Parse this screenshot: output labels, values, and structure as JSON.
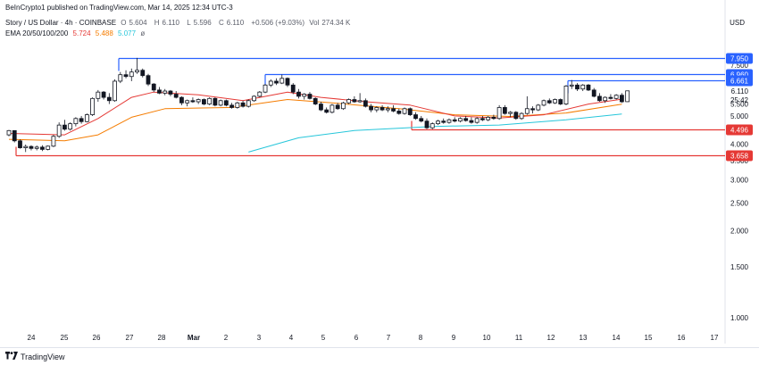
{
  "header": {
    "publish_line": "BeInCrypto1 published on TradingView.com, Mar 14, 2025 12:34 UTC-3",
    "symbol": "Story / US Dollar · 4h · COINBASE",
    "ohlc": {
      "open_label": "O",
      "open": "5.604",
      "high_label": "H",
      "high": "6.110",
      "low_label": "L",
      "low": "5.596",
      "close_label": "C",
      "close": "6.110",
      "change": "+0.506 (+9.03%)",
      "volume_label": "Vol",
      "volume": "274.34 K"
    },
    "ema_label": "EMA 20/50/100/200",
    "ema_values": [
      "5.724",
      "5.488",
      "5.077"
    ],
    "ema_hidden_icon": "ø",
    "currency": "USD"
  },
  "colors": {
    "ema20": "#e53935",
    "ema50": "#f57c00",
    "ema100": "#26c6da",
    "resistance": "#2962ff",
    "support": "#e53935",
    "price": "#131722"
  },
  "axis": {
    "price_ticks": [
      "7.500",
      "7.000",
      "6.500",
      "6.110",
      "5.500",
      "5.000",
      "4.000",
      "3.500",
      "3.000",
      "2.500",
      "2.000",
      "1.500",
      "1.000"
    ],
    "date_ticks": [
      "24",
      "25",
      "26",
      "27",
      "28",
      "Mar",
      "2",
      "3",
      "4",
      "5",
      "6",
      "7",
      "8",
      "9",
      "10",
      "11",
      "12",
      "13",
      "14",
      "15",
      "16",
      "17"
    ],
    "countdown": "25:42"
  },
  "levels": {
    "resistance": [
      "7.950",
      "6.960",
      "6.661"
    ],
    "support": [
      "4.496",
      "3.658"
    ]
  },
  "footer": {
    "brand": "TradingView",
    "logo_icon": "tradingview-logo-icon"
  },
  "chart_data": {
    "type": "candlestick",
    "interval": "4h",
    "note_values": "OHLC estimated from chart",
    "candles": [
      [
        4.3,
        4.47,
        4.25,
        4.45
      ],
      [
        4.45,
        4.46,
        4.05,
        4.1
      ],
      [
        4.1,
        4.15,
        3.85,
        3.88
      ],
      [
        3.88,
        3.98,
        3.75,
        3.92
      ],
      [
        3.92,
        3.96,
        3.8,
        3.86
      ],
      [
        3.86,
        3.95,
        3.8,
        3.9
      ],
      [
        3.9,
        3.96,
        3.78,
        3.83
      ],
      [
        3.83,
        3.95,
        3.8,
        3.93
      ],
      [
        3.93,
        4.3,
        3.9,
        4.25
      ],
      [
        4.25,
        4.75,
        4.2,
        4.65
      ],
      [
        4.65,
        4.85,
        4.45,
        4.5
      ],
      [
        4.5,
        4.75,
        4.45,
        4.7
      ],
      [
        4.7,
        4.95,
        4.6,
        4.9
      ],
      [
        4.9,
        5.0,
        4.7,
        4.78
      ],
      [
        4.78,
        5.1,
        4.75,
        5.05
      ],
      [
        5.05,
        5.8,
        5.0,
        5.75
      ],
      [
        5.75,
        6.15,
        5.6,
        6.05
      ],
      [
        6.05,
        6.1,
        5.7,
        5.8
      ],
      [
        5.8,
        6.0,
        5.5,
        5.65
      ],
      [
        5.65,
        6.7,
        5.6,
        6.6
      ],
      [
        6.6,
        7.1,
        6.5,
        6.95
      ],
      [
        6.95,
        7.2,
        6.75,
        6.85
      ],
      [
        6.85,
        7.3,
        6.6,
        7.1
      ],
      [
        7.1,
        7.95,
        7.0,
        7.2
      ],
      [
        7.2,
        7.3,
        6.8,
        6.9
      ],
      [
        6.9,
        7.0,
        6.35,
        6.45
      ],
      [
        6.45,
        6.5,
        6.05,
        6.15
      ],
      [
        6.15,
        6.3,
        5.95,
        6.0
      ],
      [
        6.0,
        6.2,
        5.9,
        6.1
      ],
      [
        6.1,
        6.15,
        5.85,
        5.95
      ],
      [
        5.95,
        6.1,
        5.75,
        5.8
      ],
      [
        5.8,
        5.85,
        5.45,
        5.55
      ],
      [
        5.55,
        5.7,
        5.4,
        5.65
      ],
      [
        5.65,
        5.8,
        5.55,
        5.6
      ],
      [
        5.6,
        5.75,
        5.5,
        5.7
      ],
      [
        5.7,
        5.75,
        5.45,
        5.5
      ],
      [
        5.5,
        5.8,
        5.45,
        5.75
      ],
      [
        5.75,
        5.8,
        5.4,
        5.45
      ],
      [
        5.45,
        5.7,
        5.4,
        5.65
      ],
      [
        5.65,
        5.7,
        5.4,
        5.45
      ],
      [
        5.45,
        5.55,
        5.3,
        5.35
      ],
      [
        5.35,
        5.6,
        5.3,
        5.55
      ],
      [
        5.55,
        5.65,
        5.35,
        5.4
      ],
      [
        5.4,
        5.7,
        5.35,
        5.65
      ],
      [
        5.65,
        5.9,
        5.6,
        5.85
      ],
      [
        5.85,
        6.1,
        5.8,
        6.05
      ],
      [
        6.05,
        6.45,
        6.0,
        6.4
      ],
      [
        6.4,
        6.7,
        6.3,
        6.6
      ],
      [
        6.6,
        6.75,
        6.4,
        6.5
      ],
      [
        6.5,
        6.96,
        6.45,
        6.75
      ],
      [
        6.75,
        6.8,
        6.3,
        6.4
      ],
      [
        6.4,
        6.5,
        5.95,
        6.05
      ],
      [
        6.05,
        6.2,
        5.75,
        5.85
      ],
      [
        5.85,
        6.0,
        5.7,
        5.95
      ],
      [
        5.95,
        6.05,
        5.7,
        5.75
      ],
      [
        5.75,
        5.8,
        5.45,
        5.5
      ],
      [
        5.5,
        5.6,
        5.2,
        5.25
      ],
      [
        5.25,
        5.35,
        5.1,
        5.15
      ],
      [
        5.15,
        5.5,
        5.1,
        5.45
      ],
      [
        5.45,
        5.55,
        5.25,
        5.3
      ],
      [
        5.3,
        5.6,
        5.25,
        5.55
      ],
      [
        5.55,
        5.75,
        5.5,
        5.7
      ],
      [
        5.7,
        5.85,
        5.55,
        5.6
      ],
      [
        5.6,
        6.0,
        5.55,
        5.65
      ],
      [
        5.65,
        5.75,
        5.35,
        5.4
      ],
      [
        5.4,
        5.5,
        5.15,
        5.25
      ],
      [
        5.25,
        5.4,
        5.15,
        5.35
      ],
      [
        5.35,
        5.45,
        5.2,
        5.25
      ],
      [
        5.25,
        5.4,
        5.15,
        5.3
      ],
      [
        5.3,
        5.45,
        5.15,
        5.2
      ],
      [
        5.2,
        5.3,
        5.05,
        5.1
      ],
      [
        5.1,
        5.35,
        5.05,
        5.3
      ],
      [
        5.3,
        5.35,
        5.0,
        5.05
      ],
      [
        5.05,
        5.15,
        4.85,
        4.9
      ],
      [
        4.9,
        5.0,
        4.75,
        4.8
      ],
      [
        4.8,
        4.9,
        4.5,
        4.55
      ],
      [
        4.55,
        4.75,
        4.5,
        4.7
      ],
      [
        4.7,
        4.85,
        4.65,
        4.8
      ],
      [
        4.8,
        4.9,
        4.7,
        4.75
      ],
      [
        4.75,
        4.9,
        4.7,
        4.85
      ],
      [
        4.85,
        4.95,
        4.75,
        4.8
      ],
      [
        4.8,
        4.95,
        4.75,
        4.9
      ],
      [
        4.9,
        5.0,
        4.78,
        4.82
      ],
      [
        4.82,
        4.95,
        4.7,
        4.75
      ],
      [
        4.75,
        4.95,
        4.7,
        4.9
      ],
      [
        4.9,
        5.0,
        4.8,
        4.85
      ],
      [
        4.85,
        5.0,
        4.8,
        4.95
      ],
      [
        4.95,
        5.05,
        4.85,
        4.9
      ],
      [
        4.9,
        5.45,
        4.85,
        5.35
      ],
      [
        5.35,
        5.45,
        5.05,
        5.1
      ],
      [
        5.1,
        5.2,
        4.95,
        5.15
      ],
      [
        5.15,
        5.2,
        4.85,
        4.9
      ],
      [
        4.9,
        5.15,
        4.85,
        5.1
      ],
      [
        5.1,
        5.85,
        5.05,
        5.3
      ],
      [
        5.3,
        5.4,
        5.1,
        5.25
      ],
      [
        5.25,
        5.5,
        5.2,
        5.45
      ],
      [
        5.45,
        5.7,
        5.4,
        5.65
      ],
      [
        5.65,
        5.75,
        5.5,
        5.55
      ],
      [
        5.55,
        5.75,
        5.5,
        5.7
      ],
      [
        5.7,
        5.75,
        5.45,
        5.5
      ],
      [
        5.5,
        6.4,
        5.45,
        6.35
      ],
      [
        6.35,
        6.66,
        6.2,
        6.4
      ],
      [
        6.4,
        6.5,
        6.1,
        6.2
      ],
      [
        6.2,
        6.45,
        6.1,
        6.4
      ],
      [
        6.4,
        6.45,
        6.1,
        6.15
      ],
      [
        6.15,
        6.25,
        5.8,
        5.85
      ],
      [
        5.85,
        6.0,
        5.6,
        5.65
      ],
      [
        5.65,
        5.85,
        5.55,
        5.8
      ],
      [
        5.8,
        5.95,
        5.7,
        5.75
      ],
      [
        5.75,
        5.95,
        5.7,
        5.9
      ],
      [
        5.9,
        6.0,
        5.55,
        5.6
      ],
      [
        5.604,
        6.11,
        5.596,
        6.11
      ]
    ],
    "ema20": [
      [
        0,
        4.35
      ],
      [
        10,
        4.3
      ],
      [
        16,
        4.9
      ],
      [
        22,
        5.8
      ],
      [
        26,
        6.05
      ],
      [
        34,
        5.92
      ],
      [
        42,
        5.65
      ],
      [
        50,
        6.05
      ],
      [
        56,
        5.8
      ],
      [
        64,
        5.6
      ],
      [
        72,
        5.45
      ],
      [
        80,
        5.0
      ],
      [
        88,
        4.92
      ],
      [
        96,
        5.05
      ],
      [
        104,
        5.5
      ],
      [
        110,
        5.72
      ]
    ],
    "ema50": [
      [
        0,
        4.15
      ],
      [
        10,
        4.1
      ],
      [
        16,
        4.3
      ],
      [
        22,
        4.95
      ],
      [
        28,
        5.3
      ],
      [
        40,
        5.35
      ],
      [
        50,
        5.7
      ],
      [
        58,
        5.55
      ],
      [
        70,
        5.3
      ],
      [
        80,
        5.05
      ],
      [
        90,
        4.98
      ],
      [
        100,
        5.12
      ],
      [
        110,
        5.49
      ]
    ],
    "ema100": [
      [
        43,
        3.75
      ],
      [
        52,
        4.2
      ],
      [
        62,
        4.45
      ],
      [
        76,
        4.6
      ],
      [
        88,
        4.65
      ],
      [
        100,
        4.85
      ],
      [
        110,
        5.08
      ]
    ]
  }
}
